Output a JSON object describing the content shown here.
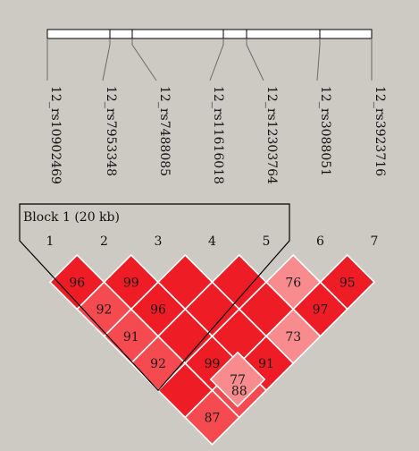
{
  "snps": [
    "12_rs10902469",
    "12_rs7953348",
    "12_rs7488085",
    "12_rs11616018",
    "12_rs12303764",
    "12_rs3088051",
    "12_rs3923716"
  ],
  "marker_numbers": [
    "1",
    "2",
    "3",
    "4",
    "5",
    "6",
    "7"
  ],
  "block_label": "Block 1 (20 kb)",
  "ld_cells": [
    {
      "i": 1,
      "j": 2,
      "label": "96",
      "shade": "strong"
    },
    {
      "i": 2,
      "j": 3,
      "label": "99",
      "shade": "strong"
    },
    {
      "i": 3,
      "j": 4,
      "label": "",
      "shade": "strong"
    },
    {
      "i": 4,
      "j": 5,
      "label": "",
      "shade": "strong"
    },
    {
      "i": 5,
      "j": 6,
      "label": "76",
      "shade": "light"
    },
    {
      "i": 6,
      "j": 7,
      "label": "95",
      "shade": "strong"
    },
    {
      "i": 1,
      "j": 3,
      "label": "92",
      "shade": "medium"
    },
    {
      "i": 2,
      "j": 4,
      "label": "96",
      "shade": "strong"
    },
    {
      "i": 3,
      "j": 5,
      "label": "",
      "shade": "strong"
    },
    {
      "i": 4,
      "j": 6,
      "label": "",
      "shade": "strong"
    },
    {
      "i": 5,
      "j": 7,
      "label": "97",
      "shade": "strong"
    },
    {
      "i": 1,
      "j": 4,
      "label": "91",
      "shade": "medium"
    },
    {
      "i": 2,
      "j": 5,
      "label": "",
      "shade": "strong"
    },
    {
      "i": 3,
      "j": 6,
      "label": "",
      "shade": "strong"
    },
    {
      "i": 4,
      "j": 7,
      "label": "73",
      "shade": "light"
    },
    {
      "i": 1,
      "j": 5,
      "label": "92",
      "shade": "medium"
    },
    {
      "i": 2,
      "j": 6,
      "label": "99",
      "shade": "strong"
    },
    {
      "i": 3,
      "j": 7,
      "label": "91",
      "shade": "strong"
    },
    {
      "i": 1,
      "j": 6,
      "label": "",
      "shade": "strong"
    },
    {
      "i": 2,
      "j": 7,
      "label": "88",
      "shade": "medium"
    },
    {
      "i": 1,
      "j": 7,
      "label": "87",
      "shade": "medium"
    }
  ],
  "extra_labels": [
    {
      "text": "77",
      "shade": "light",
      "i": 2,
      "j": 7,
      "note": "label shown below 88"
    }
  ],
  "colors": {
    "background": "#cdcac4",
    "strong": "#ee1c24",
    "medium": "#f44a50",
    "light": "#f78b8d",
    "cell_border": "#ffffff",
    "line": "#000000"
  }
}
